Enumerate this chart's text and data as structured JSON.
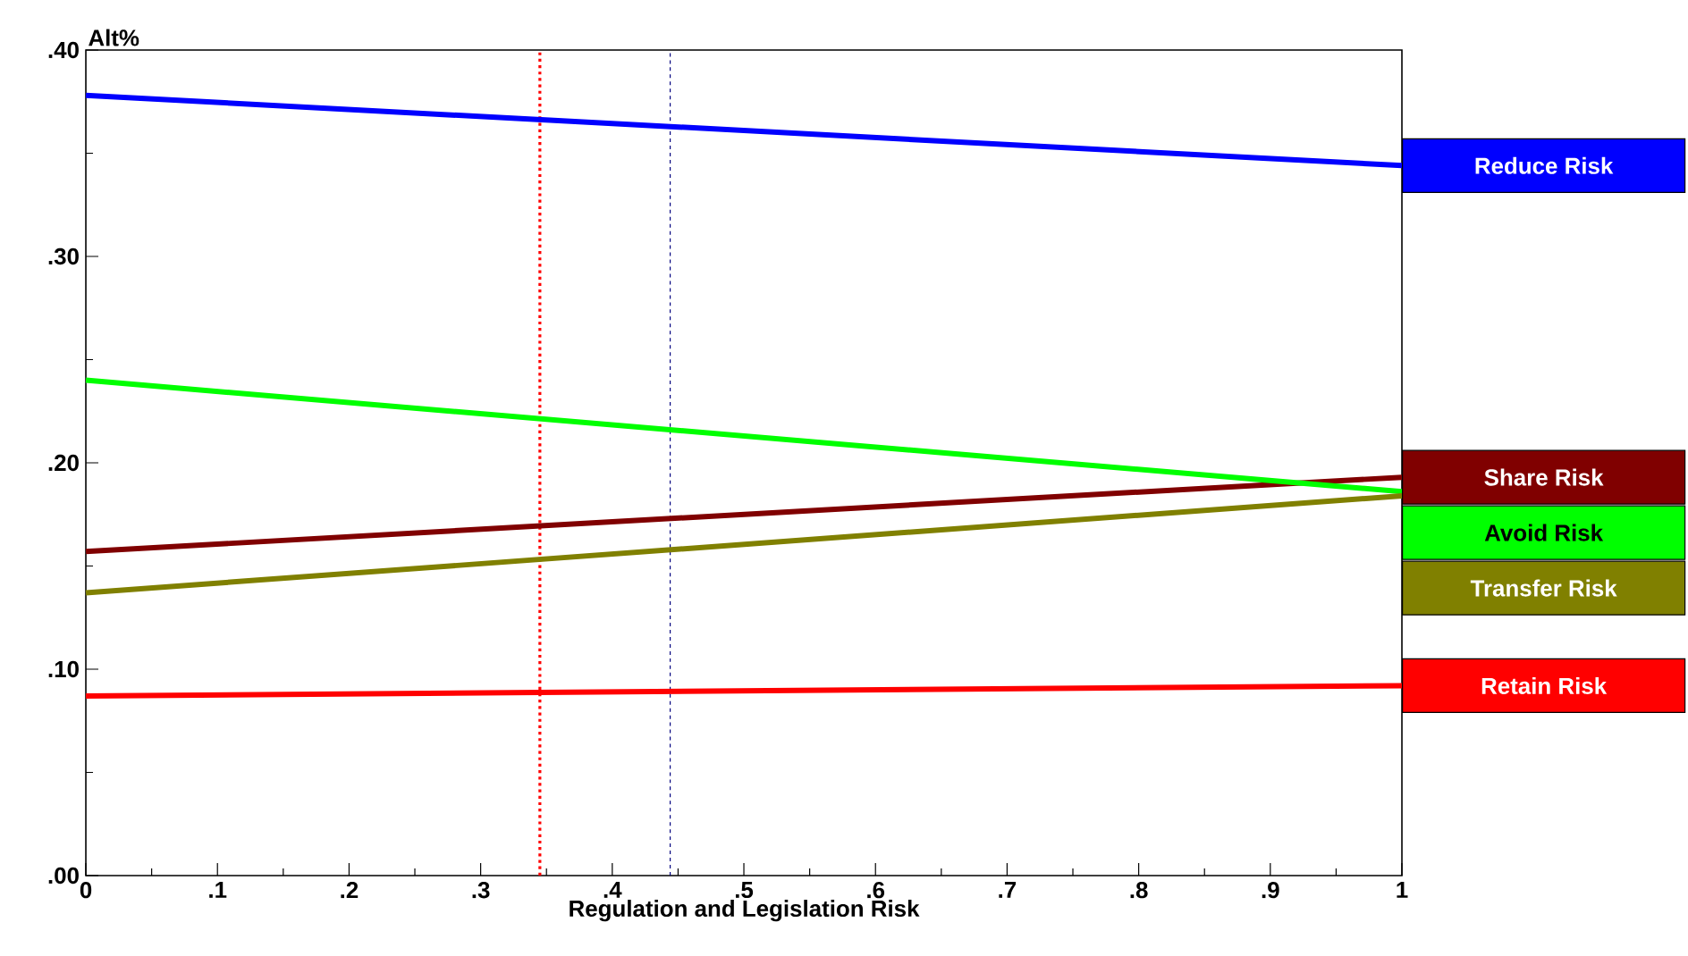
{
  "chart_data": {
    "type": "line",
    "xlabel": "Regulation and Legislation Risk",
    "ylabel": "Alt%",
    "x": [
      0,
      1
    ],
    "series": [
      {
        "name": "Reduce Risk",
        "color": "#0000ff",
        "values": [
          0.378,
          0.344
        ]
      },
      {
        "name": "Share Risk",
        "color": "#800000",
        "values": [
          0.157,
          0.193
        ]
      },
      {
        "name": "Avoid Risk",
        "color": "#00ff00",
        "values": [
          0.24,
          0.186
        ]
      },
      {
        "name": "Transfer Risk",
        "color": "#808000",
        "values": [
          0.137,
          0.184
        ]
      },
      {
        "name": "Retain Risk",
        "color": "#ff0000",
        "values": [
          0.087,
          0.092
        ]
      }
    ],
    "ref_lines": [
      {
        "axis": "x",
        "value": 0.345,
        "color": "#ff0000",
        "line_style": "dotted"
      },
      {
        "axis": "x",
        "value": 0.444,
        "color": "#000080",
        "line_style": "dashed"
      }
    ],
    "xlim": [
      0,
      1
    ],
    "xticks": [
      {
        "value": 0,
        "label": "0"
      },
      {
        "value": 0.1,
        "label": ".1"
      },
      {
        "value": 0.2,
        "label": ".2"
      },
      {
        "value": 0.3,
        "label": ".3"
      },
      {
        "value": 0.4,
        "label": ".4"
      },
      {
        "value": 0.5,
        "label": ".5"
      },
      {
        "value": 0.6,
        "label": ".6"
      },
      {
        "value": 0.7,
        "label": ".7"
      },
      {
        "value": 0.8,
        "label": ".8"
      },
      {
        "value": 0.9,
        "label": ".9"
      },
      {
        "value": 1,
        "label": "1"
      }
    ],
    "ylim": [
      0,
      0.4
    ],
    "yticks": [
      {
        "value": 0,
        "label": ".00"
      },
      {
        "value": 0.1,
        "label": ".10"
      },
      {
        "value": 0.2,
        "label": ".20"
      },
      {
        "value": 0.3,
        "label": ".30"
      },
      {
        "value": 0.4,
        "label": ".40"
      }
    ]
  }
}
